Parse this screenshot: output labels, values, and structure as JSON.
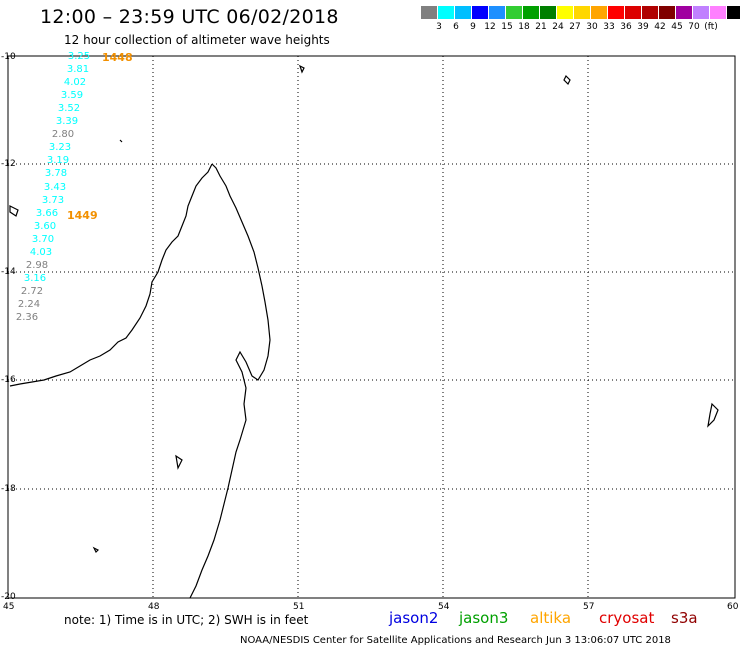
{
  "title": "12:00 – 23:59 UTC 06/02/2018",
  "subtitle": "12 hour collection of altimeter wave heights",
  "scale": {
    "colors": [
      "#808080",
      "#00ffff",
      "#00bfff",
      "#0000ff",
      "#1e90ff",
      "#32cd32",
      "#00a000",
      "#008000",
      "#ffff00",
      "#ffd700",
      "#ffa500",
      "#ff0000",
      "#dc0000",
      "#b00000",
      "#800000",
      "#a000a0",
      "#c080ff",
      "#ff80ff",
      "#000000"
    ],
    "labels": [
      "3",
      "6",
      "9",
      "12",
      "15",
      "18",
      "21",
      "24",
      "27",
      "30",
      "33",
      "36",
      "39",
      "42",
      "45",
      "70",
      "(ft)"
    ]
  },
  "axes": {
    "lat_labels": [
      "-10",
      "-12",
      "-14",
      "-16",
      "-18",
      "-20"
    ],
    "lon_labels": [
      "45",
      "48",
      "51",
      "54",
      "57",
      "60"
    ]
  },
  "passes": [
    {
      "label": "1448"
    },
    {
      "label": "1449"
    }
  ],
  "wave_heights": [
    {
      "value": "3.25",
      "color": "#00ffff"
    },
    {
      "value": "3.81",
      "color": "#00ffff"
    },
    {
      "value": "4.02",
      "color": "#00ffff"
    },
    {
      "value": "3.59",
      "color": "#00ffff"
    },
    {
      "value": "3.52",
      "color": "#00ffff"
    },
    {
      "value": "3.39",
      "color": "#00ffff"
    },
    {
      "value": "2.80",
      "color": "#808080"
    },
    {
      "value": "3.23",
      "color": "#00ffff"
    },
    {
      "value": "3.19",
      "color": "#00ffff"
    },
    {
      "value": "3.78",
      "color": "#00ffff"
    },
    {
      "value": "3.43",
      "color": "#00ffff"
    },
    {
      "value": "3.73",
      "color": "#00ffff"
    },
    {
      "value": "3.66",
      "color": "#00ffff"
    },
    {
      "value": "3.60",
      "color": "#00ffff"
    },
    {
      "value": "3.70",
      "color": "#00ffff"
    },
    {
      "value": "4.03",
      "color": "#00ffff"
    },
    {
      "value": "2.98",
      "color": "#808080"
    },
    {
      "value": "3.16",
      "color": "#00ffff"
    },
    {
      "value": "2.72",
      "color": "#808080"
    },
    {
      "value": "2.24",
      "color": "#808080"
    },
    {
      "value": "2.36",
      "color": "#808080"
    }
  ],
  "note": "note:  1) Time is in UTC; 2) SWH is in feet",
  "satellites": [
    {
      "name": "jason2",
      "color": "#0000e0"
    },
    {
      "name": "jason3",
      "color": "#00a000"
    },
    {
      "name": "altika",
      "color": "#ffa500"
    },
    {
      "name": "cryosat",
      "color": "#e00000"
    },
    {
      "name": "s3a",
      "color": "#900000"
    }
  ],
  "credit": "NOAA/NESDIS Center for Satellite Applications and Research    Jun  3 13:06:07 UTC 2018"
}
